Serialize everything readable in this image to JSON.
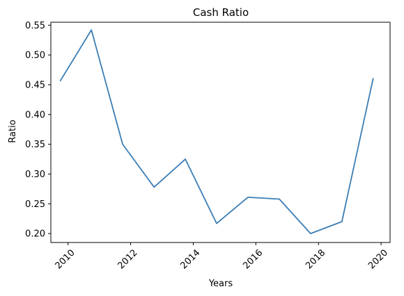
{
  "chart_data": {
    "type": "line",
    "title": "Cash Ratio",
    "xlabel": "Years",
    "ylabel": "Ratio",
    "x": [
      "2009-10-01",
      "2010-10-01",
      "2011-10-01",
      "2012-10-01",
      "2013-10-01",
      "2014-10-01",
      "2015-10-01",
      "2016-10-01",
      "2017-10-01",
      "2018-10-01",
      "2019-10-01"
    ],
    "series": [
      {
        "values": [
          0.456,
          0.542,
          0.35,
          0.278,
          0.325,
          0.217,
          0.261,
          0.258,
          0.2,
          0.22,
          0.461
        ]
      }
    ],
    "xlim": [
      "2009-06-15",
      "2020-04-15"
    ],
    "ylim": [
      0.185,
      0.555
    ],
    "xticks": [
      "2010",
      "2012",
      "2014",
      "2016",
      "2018",
      "2020"
    ],
    "yticks": [
      "0.20",
      "0.25",
      "0.30",
      "0.35",
      "0.40",
      "0.45",
      "0.50",
      "0.55"
    ],
    "grid": false,
    "line_color": "#3a7db5"
  }
}
